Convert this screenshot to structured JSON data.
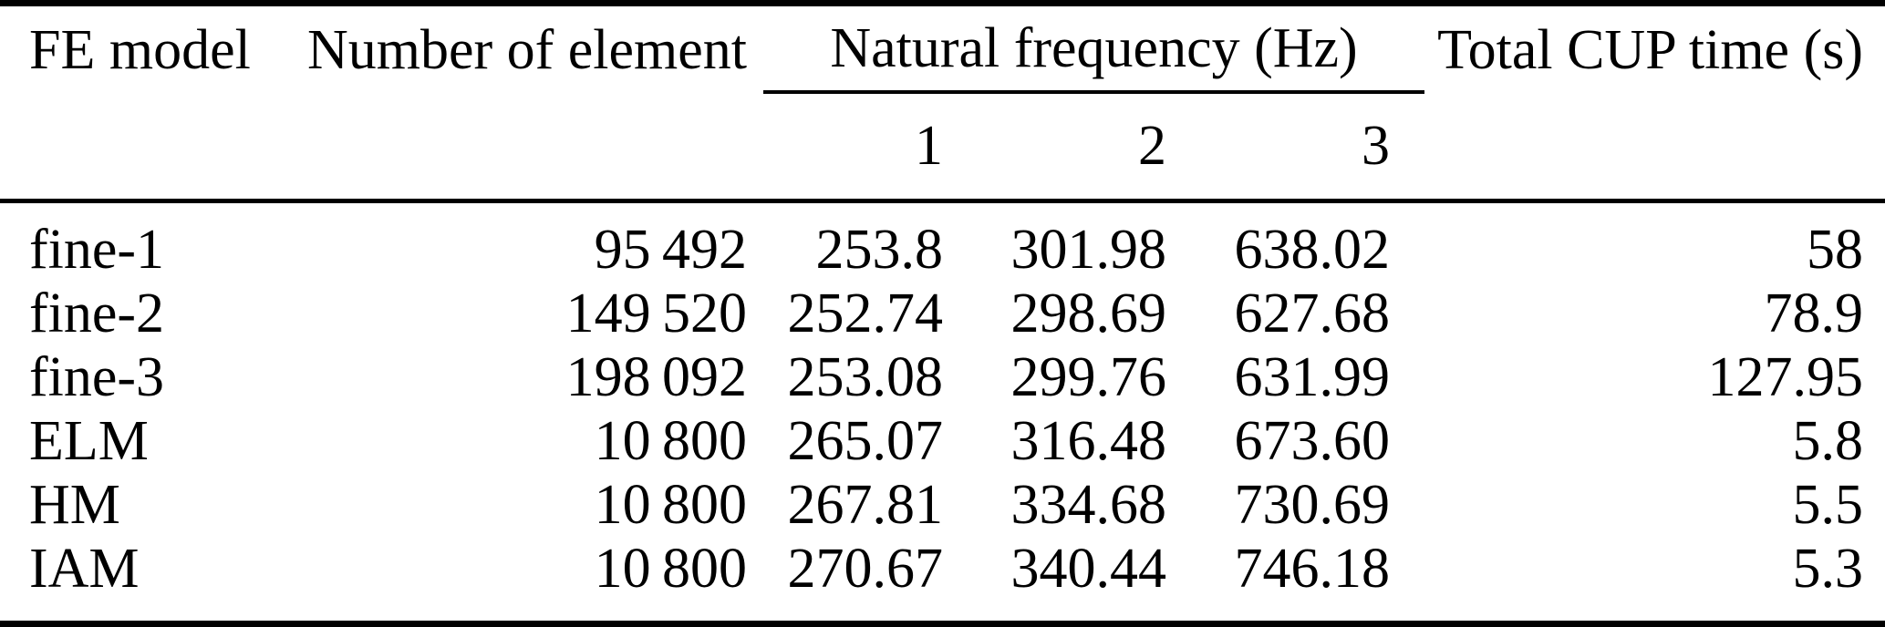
{
  "page": {
    "background_color": "#ffffff",
    "text_color": "#000000",
    "rule_color": "#000000"
  },
  "table": {
    "columns": {
      "model": "FE model",
      "elements": "Number of element",
      "freq_group": "Natural frequency (Hz)",
      "freq_modes": [
        "1",
        "2",
        "3"
      ],
      "time": "Total CUP time (s)"
    },
    "rows": [
      {
        "model": "fine-1",
        "elements": "95 492",
        "f1": "253.8",
        "f2": "301.98",
        "f3": "638.02",
        "time": "58"
      },
      {
        "model": "fine-2",
        "elements": "149 520",
        "f1": "252.74",
        "f2": "298.69",
        "f3": "627.68",
        "time": "78.9"
      },
      {
        "model": "fine-3",
        "elements": "198 092",
        "f1": "253.08",
        "f2": "299.76",
        "f3": "631.99",
        "time": "127.95"
      },
      {
        "model": "ELM",
        "elements": "10 800",
        "f1": "265.07",
        "f2": "316.48",
        "f3": "673.60",
        "time": "5.8"
      },
      {
        "model": "HM",
        "elements": "10 800",
        "f1": "267.81",
        "f2": "334.68",
        "f3": "730.69",
        "time": "5.5"
      },
      {
        "model": "IAM",
        "elements": "10 800",
        "f1": "270.67",
        "f2": "340.44",
        "f3": "746.18",
        "time": "5.3"
      }
    ]
  }
}
